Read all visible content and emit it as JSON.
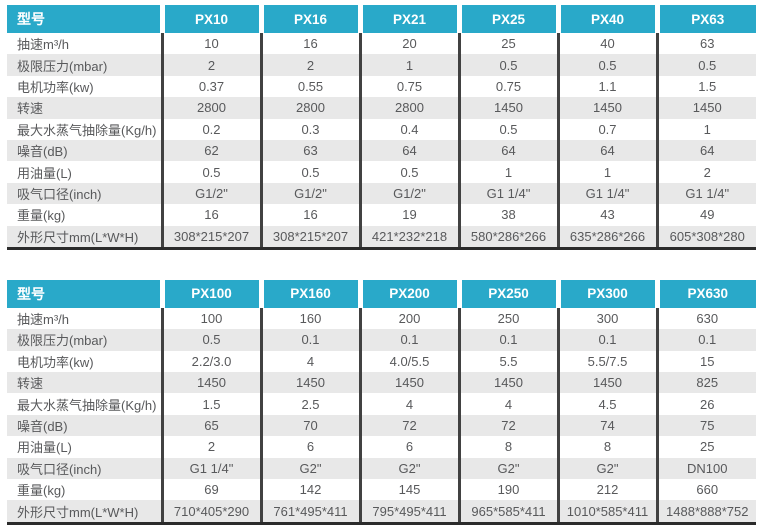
{
  "accent_color": "#29a9c9",
  "stripe_color": "#e8e8e8",
  "divider_color": "#414141",
  "text_color": "#58595b",
  "tables": [
    {
      "header_label": "型号",
      "columns": [
        "PX10",
        "PX16",
        "PX21",
        "PX25",
        "PX40",
        "PX63"
      ],
      "rows": [
        {
          "label": "抽速m³/h",
          "values": [
            "10",
            "16",
            "20",
            "25",
            "40",
            "63"
          ]
        },
        {
          "label": "极限压力(mbar)",
          "values": [
            "2",
            "2",
            "1",
            "0.5",
            "0.5",
            "0.5"
          ]
        },
        {
          "label": "电机功率(kw)",
          "values": [
            "0.37",
            "0.55",
            "0.75",
            "0.75",
            "1.1",
            "1.5"
          ]
        },
        {
          "label": "转速",
          "values": [
            "2800",
            "2800",
            "2800",
            "1450",
            "1450",
            "1450"
          ]
        },
        {
          "label": "最大水蒸气抽除量(Kg/h)",
          "values": [
            "0.2",
            "0.3",
            "0.4",
            "0.5",
            "0.7",
            "1"
          ]
        },
        {
          "label": "噪音(dB)",
          "values": [
            "62",
            "63",
            "64",
            "64",
            "64",
            "64"
          ]
        },
        {
          "label": "用油量(L)",
          "values": [
            "0.5",
            "0.5",
            "0.5",
            "1",
            "1",
            "2"
          ]
        },
        {
          "label": "吸气口径(inch)",
          "values": [
            "G1/2\"",
            "G1/2\"",
            "G1/2\"",
            "G1 1/4\"",
            "G1 1/4\"",
            "G1 1/4\""
          ]
        },
        {
          "label": "重量(kg)",
          "values": [
            "16",
            "16",
            "19",
            "38",
            "43",
            "49"
          ]
        },
        {
          "label": "外形尺寸mm(L*W*H)",
          "values": [
            "308*215*207",
            "308*215*207",
            "421*232*218",
            "580*286*266",
            "635*286*266",
            "605*308*280"
          ]
        }
      ]
    },
    {
      "header_label": "型号",
      "columns": [
        "PX100",
        "PX160",
        "PX200",
        "PX250",
        "PX300",
        "PX630"
      ],
      "rows": [
        {
          "label": "抽速m³/h",
          "values": [
            "100",
            "160",
            "200",
            "250",
            "300",
            "630"
          ]
        },
        {
          "label": "极限压力(mbar)",
          "values": [
            "0.5",
            "0.1",
            "0.1",
            "0.1",
            "0.1",
            "0.1"
          ]
        },
        {
          "label": "电机功率(kw)",
          "values": [
            "2.2/3.0",
            "4",
            "4.0/5.5",
            "5.5",
            "5.5/7.5",
            "15"
          ]
        },
        {
          "label": "转速",
          "values": [
            "1450",
            "1450",
            "1450",
            "1450",
            "1450",
            "825"
          ]
        },
        {
          "label": "最大水蒸气抽除量(Kg/h)",
          "values": [
            "1.5",
            "2.5",
            "4",
            "4",
            "4.5",
            "26"
          ]
        },
        {
          "label": "噪音(dB)",
          "values": [
            "65",
            "70",
            "72",
            "72",
            "74",
            "75"
          ]
        },
        {
          "label": "用油量(L)",
          "values": [
            "2",
            "6",
            "6",
            "8",
            "8",
            "25"
          ]
        },
        {
          "label": "吸气口径(inch)",
          "values": [
            "G1 1/4\"",
            "G2\"",
            "G2\"",
            "G2\"",
            "G2\"",
            "DN100"
          ]
        },
        {
          "label": "重量(kg)",
          "values": [
            "69",
            "142",
            "145",
            "190",
            "212",
            "660"
          ]
        },
        {
          "label": "外形尺寸mm(L*W*H)",
          "values": [
            "710*405*290",
            "761*495*411",
            "795*495*411",
            "965*585*411",
            "1010*585*411",
            "1488*888*752"
          ]
        }
      ]
    }
  ]
}
